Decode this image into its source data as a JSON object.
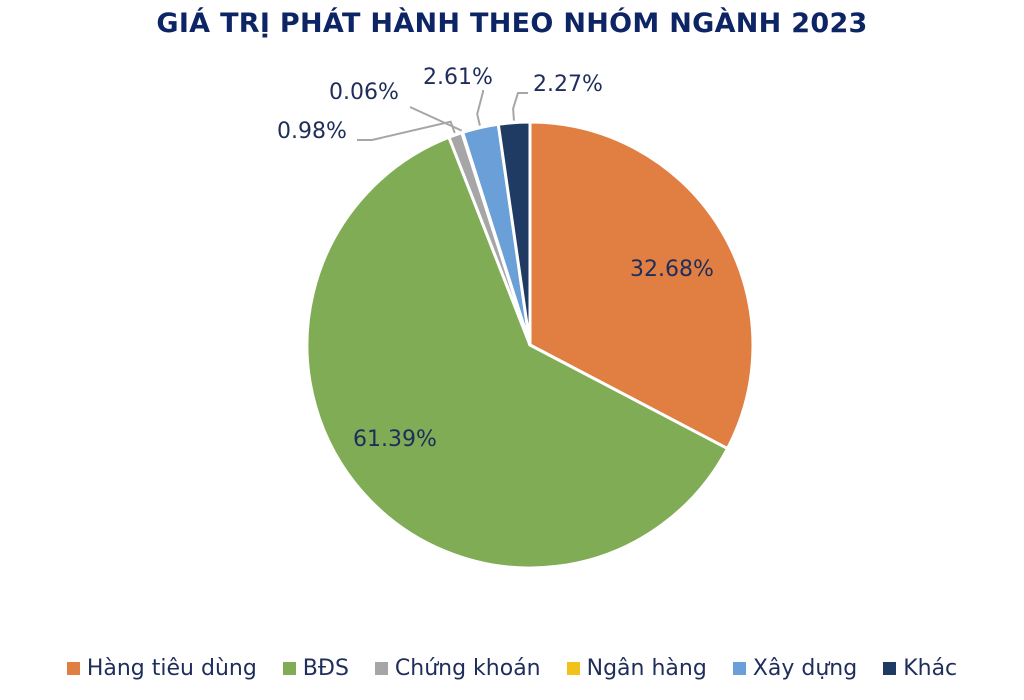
{
  "chart_data": {
    "type": "pie",
    "title": "GIÁ TRỊ PHÁT HÀNH THEO NHÓM NGÀNH 2023",
    "slices": [
      {
        "name": "Hàng tiêu dùng",
        "value": 32.68,
        "label": "32.68%",
        "color": "#e07f41"
      },
      {
        "name": "BĐS",
        "value": 61.39,
        "label": "61.39%",
        "color": "#80ac55"
      },
      {
        "name": "Chứng khoán",
        "value": 0.98,
        "label": "0.98%",
        "color": "#a6a6a6"
      },
      {
        "name": "Ngân hàng",
        "value": 0.06,
        "label": "0.06%",
        "color": "#f3c21a"
      },
      {
        "name": "Xây dựng",
        "value": 2.61,
        "label": "2.61%",
        "color": "#6a9fd8"
      },
      {
        "name": "Khác",
        "value": 2.27,
        "label": "2.27%",
        "color": "#1f3a63"
      }
    ],
    "start_angle_deg": 0,
    "direction": "clockwise",
    "legend_position": "bottom"
  },
  "colors": {
    "title": "#0d2465",
    "data_label": "#1f2d5a",
    "leader_line": "#a6a6a6",
    "slice_border": "#ffffff"
  }
}
